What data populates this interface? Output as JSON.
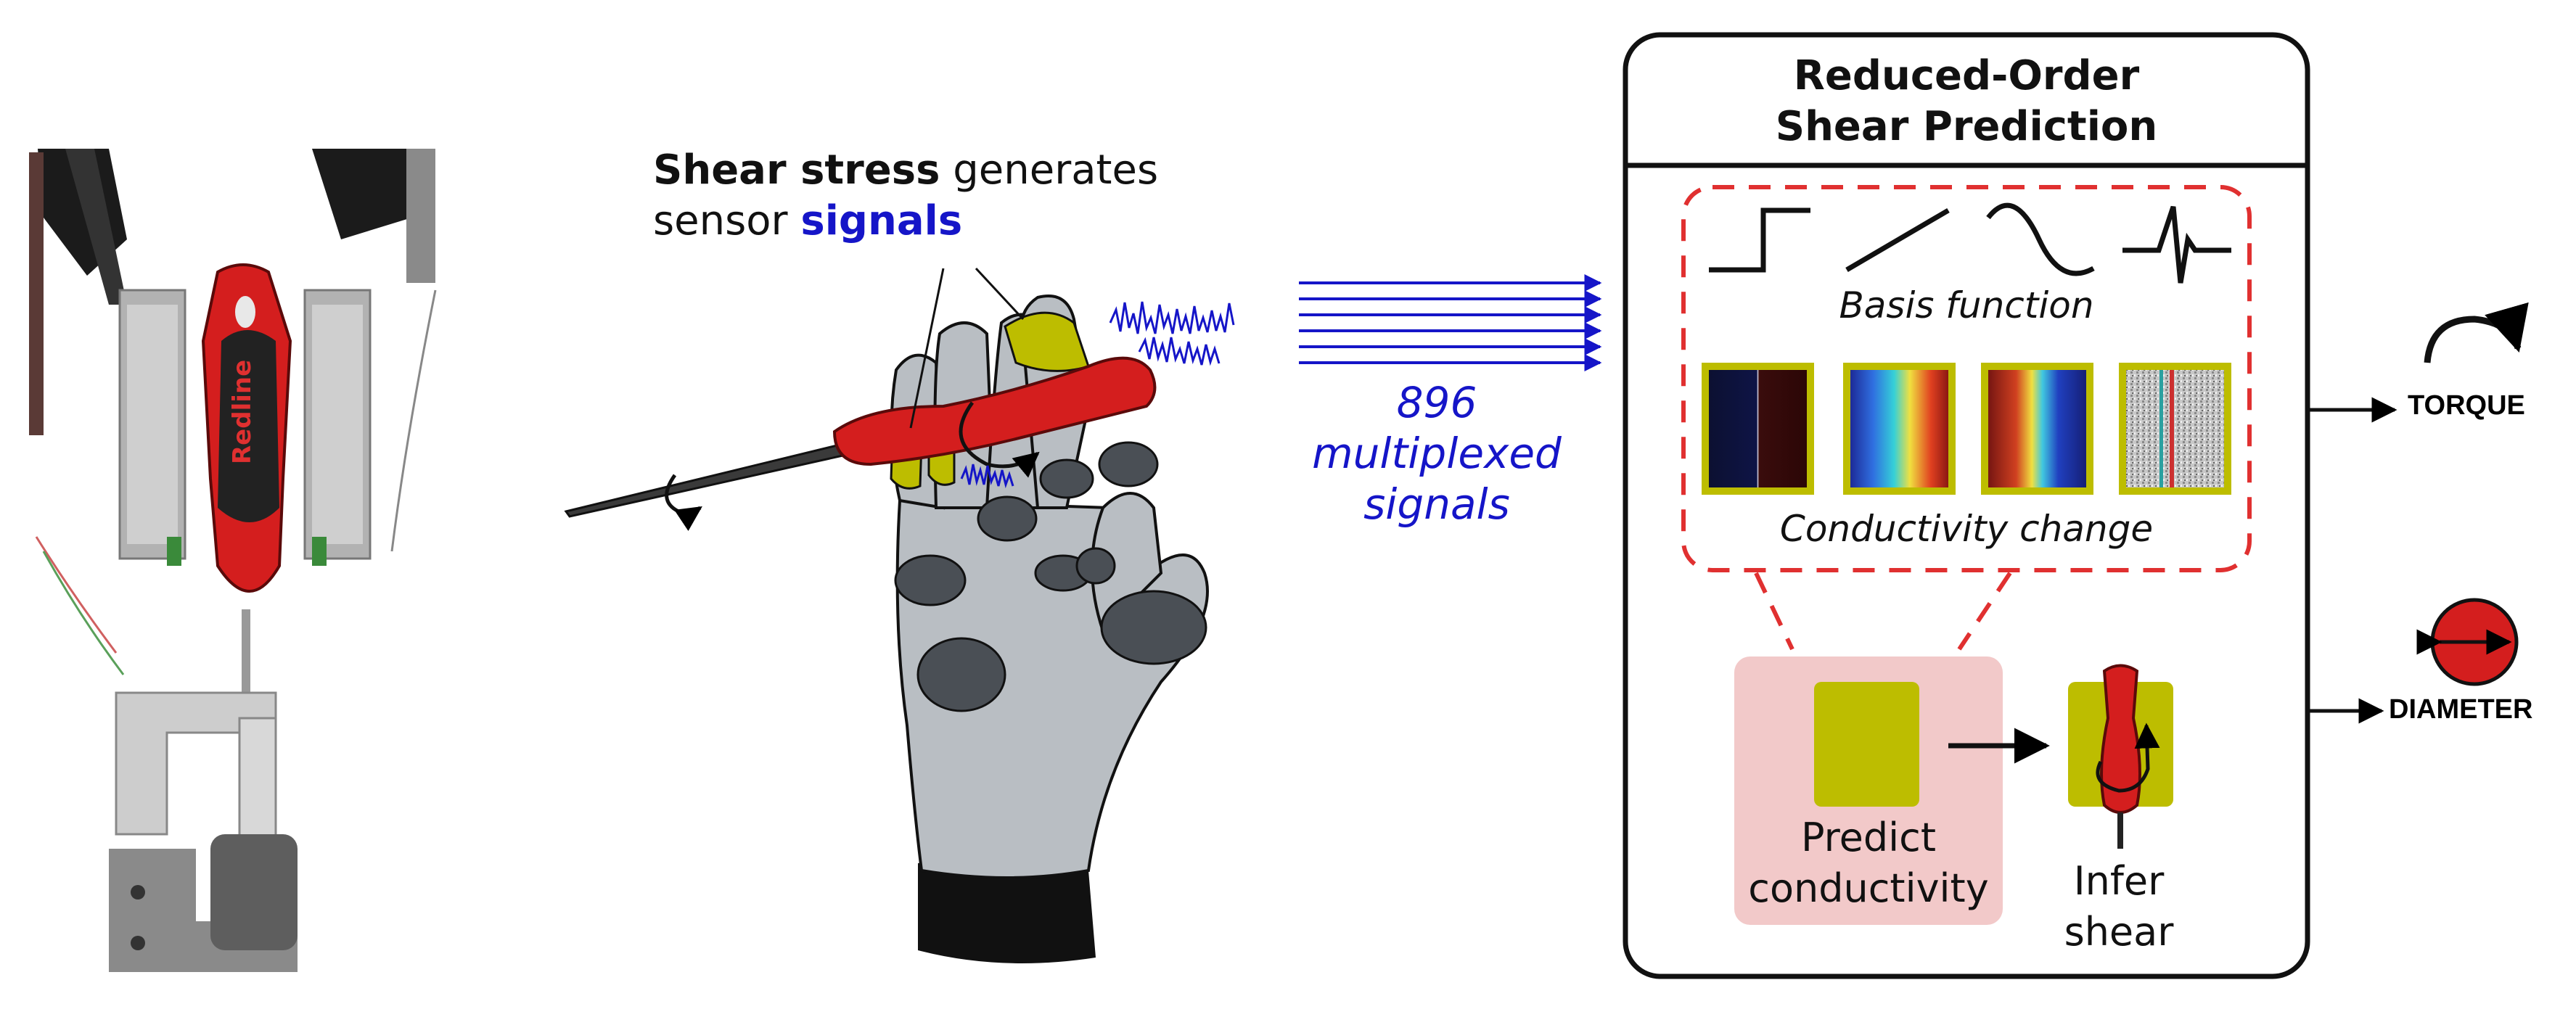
{
  "caption": {
    "shear_stress": "Shear stress",
    "generates": " generates",
    "sensor": "sensor ",
    "signals": "signals"
  },
  "multiplexed": {
    "line1": "896",
    "line2": "multiplexed",
    "line3": "signals"
  },
  "prediction_box": {
    "title_line1": "Reduced-Order",
    "title_line2": "Shear Prediction",
    "basis_label": "Basis function",
    "conductivity_label": "Conductivity change",
    "predict_line1": "Predict",
    "predict_line2": "conductivity",
    "infer_line1": "Infer",
    "infer_line2": "shear"
  },
  "outputs": {
    "torque": "TORQUE",
    "diameter": "DIAMETER"
  },
  "colors": {
    "signal_blue": "#1515c8",
    "olive": "#bdbd00",
    "screwdriver_red": "#d41e1e",
    "dashed_red": "#e03030",
    "predict_bg": "#f2c9c9",
    "hand_gray": "#b9bec3",
    "joint_dark": "#4a4f55"
  }
}
